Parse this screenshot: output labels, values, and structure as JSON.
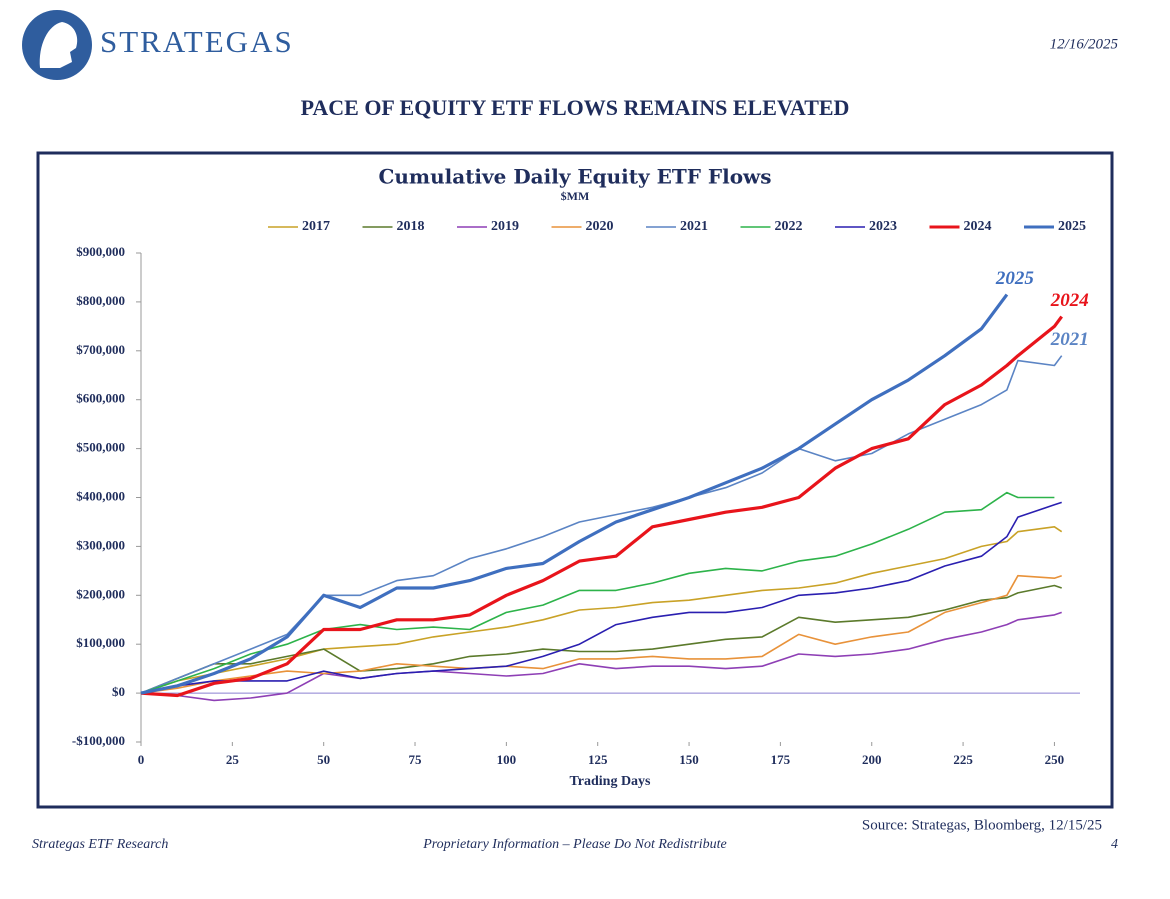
{
  "header": {
    "logo_text": "STRATEGAS",
    "date": "12/16/2025",
    "title": "PACE OF EQUITY ETF FLOWS REMAINS ELEVATED"
  },
  "chart_data": {
    "type": "line",
    "title": "Cumulative Daily Equity ETF Flows",
    "subtitle": "$MM",
    "x_label": "Trading Days",
    "x": [
      0,
      10,
      20,
      30,
      40,
      50,
      60,
      70,
      80,
      90,
      100,
      110,
      120,
      130,
      140,
      150,
      160,
      170,
      180,
      190,
      200,
      210,
      220,
      230,
      237,
      240,
      250,
      252
    ],
    "xlim": [
      0,
      257
    ],
    "xticks": [
      0,
      25,
      50,
      75,
      100,
      125,
      150,
      175,
      200,
      225,
      250
    ],
    "ylim": [
      -100000,
      900000
    ],
    "yticks": [
      {
        "value": -100000,
        "label": "-$100,000"
      },
      {
        "value": 0,
        "label": "$0"
      },
      {
        "value": 100000,
        "label": "$100,000"
      },
      {
        "value": 200000,
        "label": "$200,000"
      },
      {
        "value": 300000,
        "label": "$300,000"
      },
      {
        "value": 400000,
        "label": "$400,000"
      },
      {
        "value": 500000,
        "label": "$500,000"
      },
      {
        "value": 600000,
        "label": "$600,000"
      },
      {
        "value": 700000,
        "label": "$700,000"
      },
      {
        "value": 800000,
        "label": "$800,000"
      },
      {
        "value": 900000,
        "label": "$900,000"
      }
    ],
    "legend": "top",
    "series": [
      {
        "name": "2017",
        "color": "#c9a227",
        "values": [
          0,
          25000,
          40000,
          55000,
          70000,
          90000,
          95000,
          100000,
          115000,
          125000,
          135000,
          150000,
          170000,
          175000,
          185000,
          190000,
          200000,
          210000,
          215000,
          225000,
          245000,
          260000,
          275000,
          300000,
          310000,
          330000,
          340000,
          330000
        ]
      },
      {
        "name": "2018",
        "color": "#5b7a2b",
        "values": [
          0,
          30000,
          60000,
          60000,
          75000,
          90000,
          45000,
          50000,
          60000,
          75000,
          80000,
          90000,
          85000,
          85000,
          90000,
          100000,
          110000,
          115000,
          155000,
          145000,
          150000,
          155000,
          170000,
          190000,
          195000,
          205000,
          220000,
          215000
        ]
      },
      {
        "name": "2019",
        "color": "#8e3fb5",
        "values": [
          0,
          -5000,
          -15000,
          -10000,
          0,
          40000,
          30000,
          40000,
          45000,
          40000,
          35000,
          40000,
          60000,
          50000,
          55000,
          55000,
          50000,
          55000,
          80000,
          75000,
          80000,
          90000,
          110000,
          125000,
          140000,
          150000,
          160000,
          165000
        ]
      },
      {
        "name": "2020",
        "color": "#e8923a",
        "values": [
          0,
          10000,
          25000,
          35000,
          45000,
          40000,
          45000,
          60000,
          55000,
          50000,
          55000,
          50000,
          70000,
          70000,
          75000,
          70000,
          70000,
          75000,
          120000,
          100000,
          115000,
          125000,
          165000,
          185000,
          200000,
          240000,
          235000,
          240000
        ]
      },
      {
        "name": "2021",
        "color": "#5b84c4",
        "values": [
          0,
          30000,
          60000,
          90000,
          120000,
          200000,
          200000,
          230000,
          240000,
          275000,
          295000,
          320000,
          350000,
          365000,
          380000,
          400000,
          420000,
          450000,
          500000,
          475000,
          490000,
          530000,
          560000,
          590000,
          620000,
          680000,
          670000,
          690000
        ]
      },
      {
        "name": "2022",
        "color": "#2db34a",
        "values": [
          0,
          25000,
          50000,
          80000,
          100000,
          130000,
          140000,
          130000,
          135000,
          130000,
          165000,
          180000,
          210000,
          210000,
          225000,
          245000,
          255000,
          250000,
          270000,
          280000,
          305000,
          335000,
          370000,
          375000,
          410000,
          400000,
          400000,
          null
        ]
      },
      {
        "name": "2023",
        "color": "#2a1fb0",
        "values": [
          0,
          15000,
          25000,
          25000,
          25000,
          45000,
          30000,
          40000,
          45000,
          50000,
          55000,
          75000,
          100000,
          140000,
          155000,
          165000,
          165000,
          175000,
          200000,
          205000,
          215000,
          230000,
          260000,
          280000,
          320000,
          360000,
          385000,
          390000
        ]
      },
      {
        "name": "2024",
        "color": "#e8141b",
        "values": [
          0,
          -5000,
          20000,
          30000,
          60000,
          130000,
          130000,
          150000,
          150000,
          160000,
          200000,
          230000,
          270000,
          280000,
          340000,
          355000,
          370000,
          380000,
          400000,
          460000,
          500000,
          520000,
          590000,
          630000,
          670000,
          690000,
          750000,
          770000
        ]
      },
      {
        "name": "2025",
        "color": "#3f6fbf",
        "values": [
          0,
          15000,
          40000,
          70000,
          115000,
          200000,
          175000,
          215000,
          215000,
          230000,
          255000,
          265000,
          310000,
          350000,
          375000,
          400000,
          430000,
          460000,
          500000,
          550000,
          600000,
          640000,
          690000,
          745000,
          815000,
          null,
          null,
          null
        ]
      }
    ],
    "annotations": [
      "2025",
      "2024",
      "2021"
    ],
    "source": "Source: Strategas, Bloomberg, 12/15/25"
  },
  "footer": {
    "left": "Strategas ETF Research",
    "center": "Proprietary Information – Please Do Not Redistribute",
    "page": "4"
  }
}
